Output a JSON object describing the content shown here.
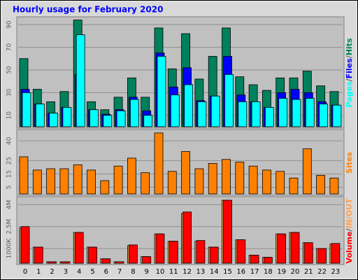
{
  "chart_data": [
    {
      "type": "bar",
      "title": "Hourly usage for February 2020",
      "ylim": [
        0,
        95
      ],
      "yticks": [
        10,
        30,
        50,
        70,
        90
      ],
      "grid": true,
      "legend_separator": "/",
      "series": [
        {
          "name": "Pages",
          "color": "#00ffff",
          "values": [
            30,
            20,
            12,
            17,
            81,
            15,
            10,
            14,
            24,
            10,
            62,
            28,
            37,
            22,
            27,
            46,
            22,
            22,
            17,
            25,
            24,
            25,
            20,
            19
          ]
        },
        {
          "name": "Files",
          "color": "#0000ff",
          "values": [
            33,
            20,
            12,
            17,
            46,
            15,
            11,
            15,
            26,
            14,
            65,
            35,
            52,
            23,
            27,
            62,
            28,
            22,
            17,
            30,
            33,
            30,
            22,
            19
          ]
        },
        {
          "name": "Hits",
          "color": "#00805c",
          "values": [
            60,
            33,
            22,
            31,
            94,
            22,
            15,
            26,
            43,
            26,
            87,
            51,
            82,
            42,
            62,
            87,
            44,
            37,
            32,
            43,
            43,
            49,
            36,
            31
          ]
        }
      ]
    },
    {
      "type": "bar",
      "ylim": [
        0,
        47
      ],
      "yticks": [
        5,
        15,
        25,
        40
      ],
      "grid": true,
      "series": [
        {
          "name": "Sites",
          "color": "#ff8000",
          "values": [
            28,
            18,
            19,
            19,
            22,
            18,
            10,
            21,
            27,
            16,
            46,
            17,
            32,
            19,
            23,
            26,
            24,
            21,
            18,
            17,
            12,
            34,
            14,
            12
          ]
        }
      ]
    },
    {
      "type": "bar",
      "categories": [
        "0",
        "1",
        "2",
        "3",
        "4",
        "5",
        "6",
        "7",
        "8",
        "9",
        "10",
        "11",
        "12",
        "13",
        "14",
        "15",
        "16",
        "17",
        "18",
        "19",
        "20",
        "21",
        "22",
        "23"
      ],
      "ylim": [
        0,
        4.4
      ],
      "yticks": [
        {
          "value": 1,
          "label": "1000K"
        },
        {
          "value": 2.5,
          "label": "2.5M"
        },
        {
          "value": 4,
          "label": "4M"
        }
      ],
      "grid": true,
      "legend_separator": "/",
      "series": [
        {
          "name": "Volume",
          "color": "#ff0000",
          "values": [
            2.5,
            1.1,
            0.1,
            0.1,
            2.1,
            1.1,
            0.3,
            0.1,
            1.25,
            0.45,
            2.0,
            1.5,
            3.5,
            1.55,
            1.1,
            4.3,
            1.6,
            0.55,
            0.4,
            2.0,
            2.1,
            1.4,
            1.0,
            1.35
          ]
        },
        {
          "name": "IN/OUT",
          "color": "#ffa050",
          "values": [
            2.4,
            1.1,
            0.1,
            0.1,
            2.1,
            1.1,
            0.3,
            0.1,
            1.2,
            0.45,
            2.0,
            1.5,
            3.4,
            1.5,
            1.1,
            4.3,
            1.6,
            0.55,
            0.4,
            2.0,
            2.1,
            1.4,
            1.0,
            1.3
          ]
        }
      ]
    }
  ]
}
